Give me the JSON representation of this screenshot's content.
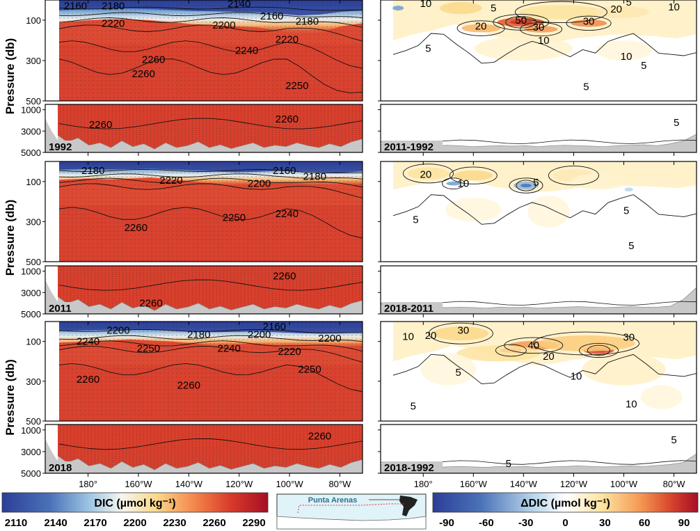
{
  "chart_data": {
    "type": "heatmap",
    "x_ticks": [
      "180°",
      "160°W",
      "140°W",
      "120°W",
      "100°W",
      "80°W"
    ],
    "y_ticks_upper": [
      "100",
      "300",
      "500"
    ],
    "y_ticks_lower": [
      "1000",
      "3000",
      "5000"
    ],
    "y_label": "Pressure (db)",
    "panels": [
      {
        "side": "left",
        "label": "1992",
        "contours": [
          {
            "text": "2160",
            "x": -185,
            "p": 40,
            "part": "upper"
          },
          {
            "text": "2180",
            "x": -170,
            "p": 40,
            "part": "upper"
          },
          {
            "text": "2140",
            "x": -120,
            "p": 30,
            "part": "upper"
          },
          {
            "text": "2160",
            "x": -107,
            "p": 90,
            "part": "upper"
          },
          {
            "text": "2180",
            "x": -93,
            "p": 115,
            "part": "upper"
          },
          {
            "text": "2220",
            "x": -170,
            "p": 125,
            "part": "upper"
          },
          {
            "text": "2200",
            "x": -126,
            "p": 135,
            "part": "upper"
          },
          {
            "text": "2220",
            "x": -101,
            "p": 205,
            "part": "upper"
          },
          {
            "text": "2240",
            "x": -117,
            "p": 260,
            "part": "upper"
          },
          {
            "text": "2260",
            "x": -154,
            "p": 305,
            "part": "upper"
          },
          {
            "text": "2260",
            "x": -158,
            "p": 375,
            "part": "upper"
          },
          {
            "text": "2250",
            "x": -97,
            "p": 435,
            "part": "upper"
          },
          {
            "text": "2260",
            "x": -175,
            "p": 2600,
            "part": "lower"
          },
          {
            "text": "2260",
            "x": -101,
            "p": 2050,
            "part": "lower"
          }
        ]
      },
      {
        "side": "left",
        "label": "2011",
        "contours": [
          {
            "text": "2180",
            "x": -178,
            "p": 55,
            "part": "upper"
          },
          {
            "text": "2160",
            "x": -102,
            "p": 55,
            "part": "upper"
          },
          {
            "text": "2180",
            "x": -90,
            "p": 85,
            "part": "upper"
          },
          {
            "text": "2220",
            "x": -147,
            "p": 105,
            "part": "upper"
          },
          {
            "text": "2200",
            "x": -112,
            "p": 120,
            "part": "upper"
          },
          {
            "text": "2260",
            "x": -161,
            "p": 340,
            "part": "upper"
          },
          {
            "text": "2250",
            "x": -122,
            "p": 290,
            "part": "upper"
          },
          {
            "text": "2240",
            "x": -101,
            "p": 270,
            "part": "upper"
          },
          {
            "text": "2260",
            "x": -102,
            "p": 1650,
            "part": "lower"
          },
          {
            "text": "2260",
            "x": -155,
            "p": 4200,
            "part": "lower"
          }
        ]
      },
      {
        "side": "left",
        "label": "2018",
        "contours": [
          {
            "text": "2200",
            "x": -168,
            "p": 55,
            "part": "upper"
          },
          {
            "text": "2180",
            "x": -136,
            "p": 75,
            "part": "upper"
          },
          {
            "text": "2160",
            "x": -106,
            "p": 35,
            "part": "upper"
          },
          {
            "text": "2200",
            "x": -112,
            "p": 75,
            "part": "upper"
          },
          {
            "text": "2200",
            "x": -84,
            "p": 95,
            "part": "upper"
          },
          {
            "text": "2240",
            "x": -180,
            "p": 110,
            "part": "upper"
          },
          {
            "text": "2250",
            "x": -156,
            "p": 145,
            "part": "upper"
          },
          {
            "text": "2240",
            "x": -124,
            "p": 145,
            "part": "upper"
          },
          {
            "text": "2220",
            "x": -100,
            "p": 160,
            "part": "upper"
          },
          {
            "text": "2260",
            "x": -180,
            "p": 300,
            "part": "upper"
          },
          {
            "text": "2260",
            "x": -140,
            "p": 330,
            "part": "upper"
          },
          {
            "text": "2250",
            "x": -92,
            "p": 250,
            "part": "upper"
          },
          {
            "text": "2260",
            "x": -88,
            "p": 1750,
            "part": "lower"
          }
        ]
      },
      {
        "side": "right",
        "label": "2011-1992",
        "contours": [
          {
            "text": "10",
            "x": -179,
            "p": 28,
            "part": "upper"
          },
          {
            "text": "5",
            "x": -152,
            "p": 50,
            "part": "upper"
          },
          {
            "text": "5",
            "x": -98,
            "p": 20,
            "part": "upper"
          },
          {
            "text": "20",
            "x": -103,
            "p": 55,
            "part": "upper"
          },
          {
            "text": "10",
            "x": -80,
            "p": 45,
            "part": "upper"
          },
          {
            "text": "50",
            "x": -141,
            "p": 110,
            "part": "upper"
          },
          {
            "text": "20",
            "x": -157,
            "p": 140,
            "part": "upper"
          },
          {
            "text": "30",
            "x": -134,
            "p": 145,
            "part": "upper"
          },
          {
            "text": "30",
            "x": -114,
            "p": 115,
            "part": "upper"
          },
          {
            "text": "10",
            "x": -132,
            "p": 210,
            "part": "upper"
          },
          {
            "text": "5",
            "x": -178,
            "p": 250,
            "part": "upper"
          },
          {
            "text": "10",
            "x": -99,
            "p": 290,
            "part": "upper"
          },
          {
            "text": "5",
            "x": -92,
            "p": 335,
            "part": "upper"
          },
          {
            "text": "5",
            "x": -115,
            "p": 440,
            "part": "upper"
          },
          {
            "text": "5",
            "x": -79,
            "p": 2400,
            "part": "lower"
          }
        ]
      },
      {
        "side": "right",
        "label": "2018-2011",
        "contours": [
          {
            "text": "20",
            "x": -179,
            "p": 75,
            "part": "upper"
          },
          {
            "text": "10",
            "x": -164,
            "p": 120,
            "part": "upper"
          },
          {
            "text": "5",
            "x": -135,
            "p": 115,
            "part": "upper"
          },
          {
            "text": "5",
            "x": -183,
            "p": 300,
            "part": "upper"
          },
          {
            "text": "5",
            "x": -99,
            "p": 255,
            "part": "upper"
          },
          {
            "text": "5",
            "x": -97,
            "p": 430,
            "part": "upper"
          }
        ]
      },
      {
        "side": "right",
        "label": "2018-1992",
        "contours": [
          {
            "text": "10",
            "x": -186,
            "p": 85,
            "part": "upper"
          },
          {
            "text": "20",
            "x": -177,
            "p": 80,
            "part": "upper"
          },
          {
            "text": "30",
            "x": -164,
            "p": 55,
            "part": "upper"
          },
          {
            "text": "40",
            "x": -136,
            "p": 130,
            "part": "upper"
          },
          {
            "text": "30",
            "x": -98,
            "p": 90,
            "part": "upper"
          },
          {
            "text": "20",
            "x": -130,
            "p": 185,
            "part": "upper"
          },
          {
            "text": "5",
            "x": -166,
            "p": 265,
            "part": "upper"
          },
          {
            "text": "10",
            "x": -119,
            "p": 285,
            "part": "upper"
          },
          {
            "text": "5",
            "x": -184,
            "p": 435,
            "part": "upper"
          },
          {
            "text": "10",
            "x": -97,
            "p": 425,
            "part": "upper"
          },
          {
            "text": "5",
            "x": -146,
            "p": 4300,
            "part": "lower"
          },
          {
            "text": "5",
            "x": -80,
            "p": 2100,
            "part": "lower"
          }
        ]
      }
    ],
    "colorbars": [
      {
        "title": "DIC (µmol kg⁻¹)",
        "ticks": [
          "2110",
          "2140",
          "2170",
          "2200",
          "2230",
          "2260",
          "2290"
        ],
        "range": [
          2110,
          2290
        ]
      },
      {
        "title": "ΔDIC (µmol kg⁻¹)",
        "ticks": [
          "-90",
          "-60",
          "-30",
          "0",
          "30",
          "60",
          "90"
        ],
        "range": [
          -90,
          90
        ]
      }
    ],
    "map_label": "Punta Arenas"
  }
}
